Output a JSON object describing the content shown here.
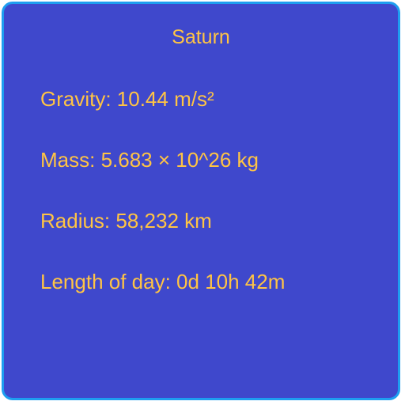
{
  "planet": {
    "name": "Saturn",
    "stats": [
      "Gravity: 10.44 m/s²",
      "Mass: 5.683 × 10^26 kg",
      "Radius: 58,232 km",
      "Length of day: 0d 10h 42m"
    ]
  },
  "colors": {
    "background": "#3f48cc",
    "border": "#1e9ef0",
    "text": "#ffc444"
  }
}
